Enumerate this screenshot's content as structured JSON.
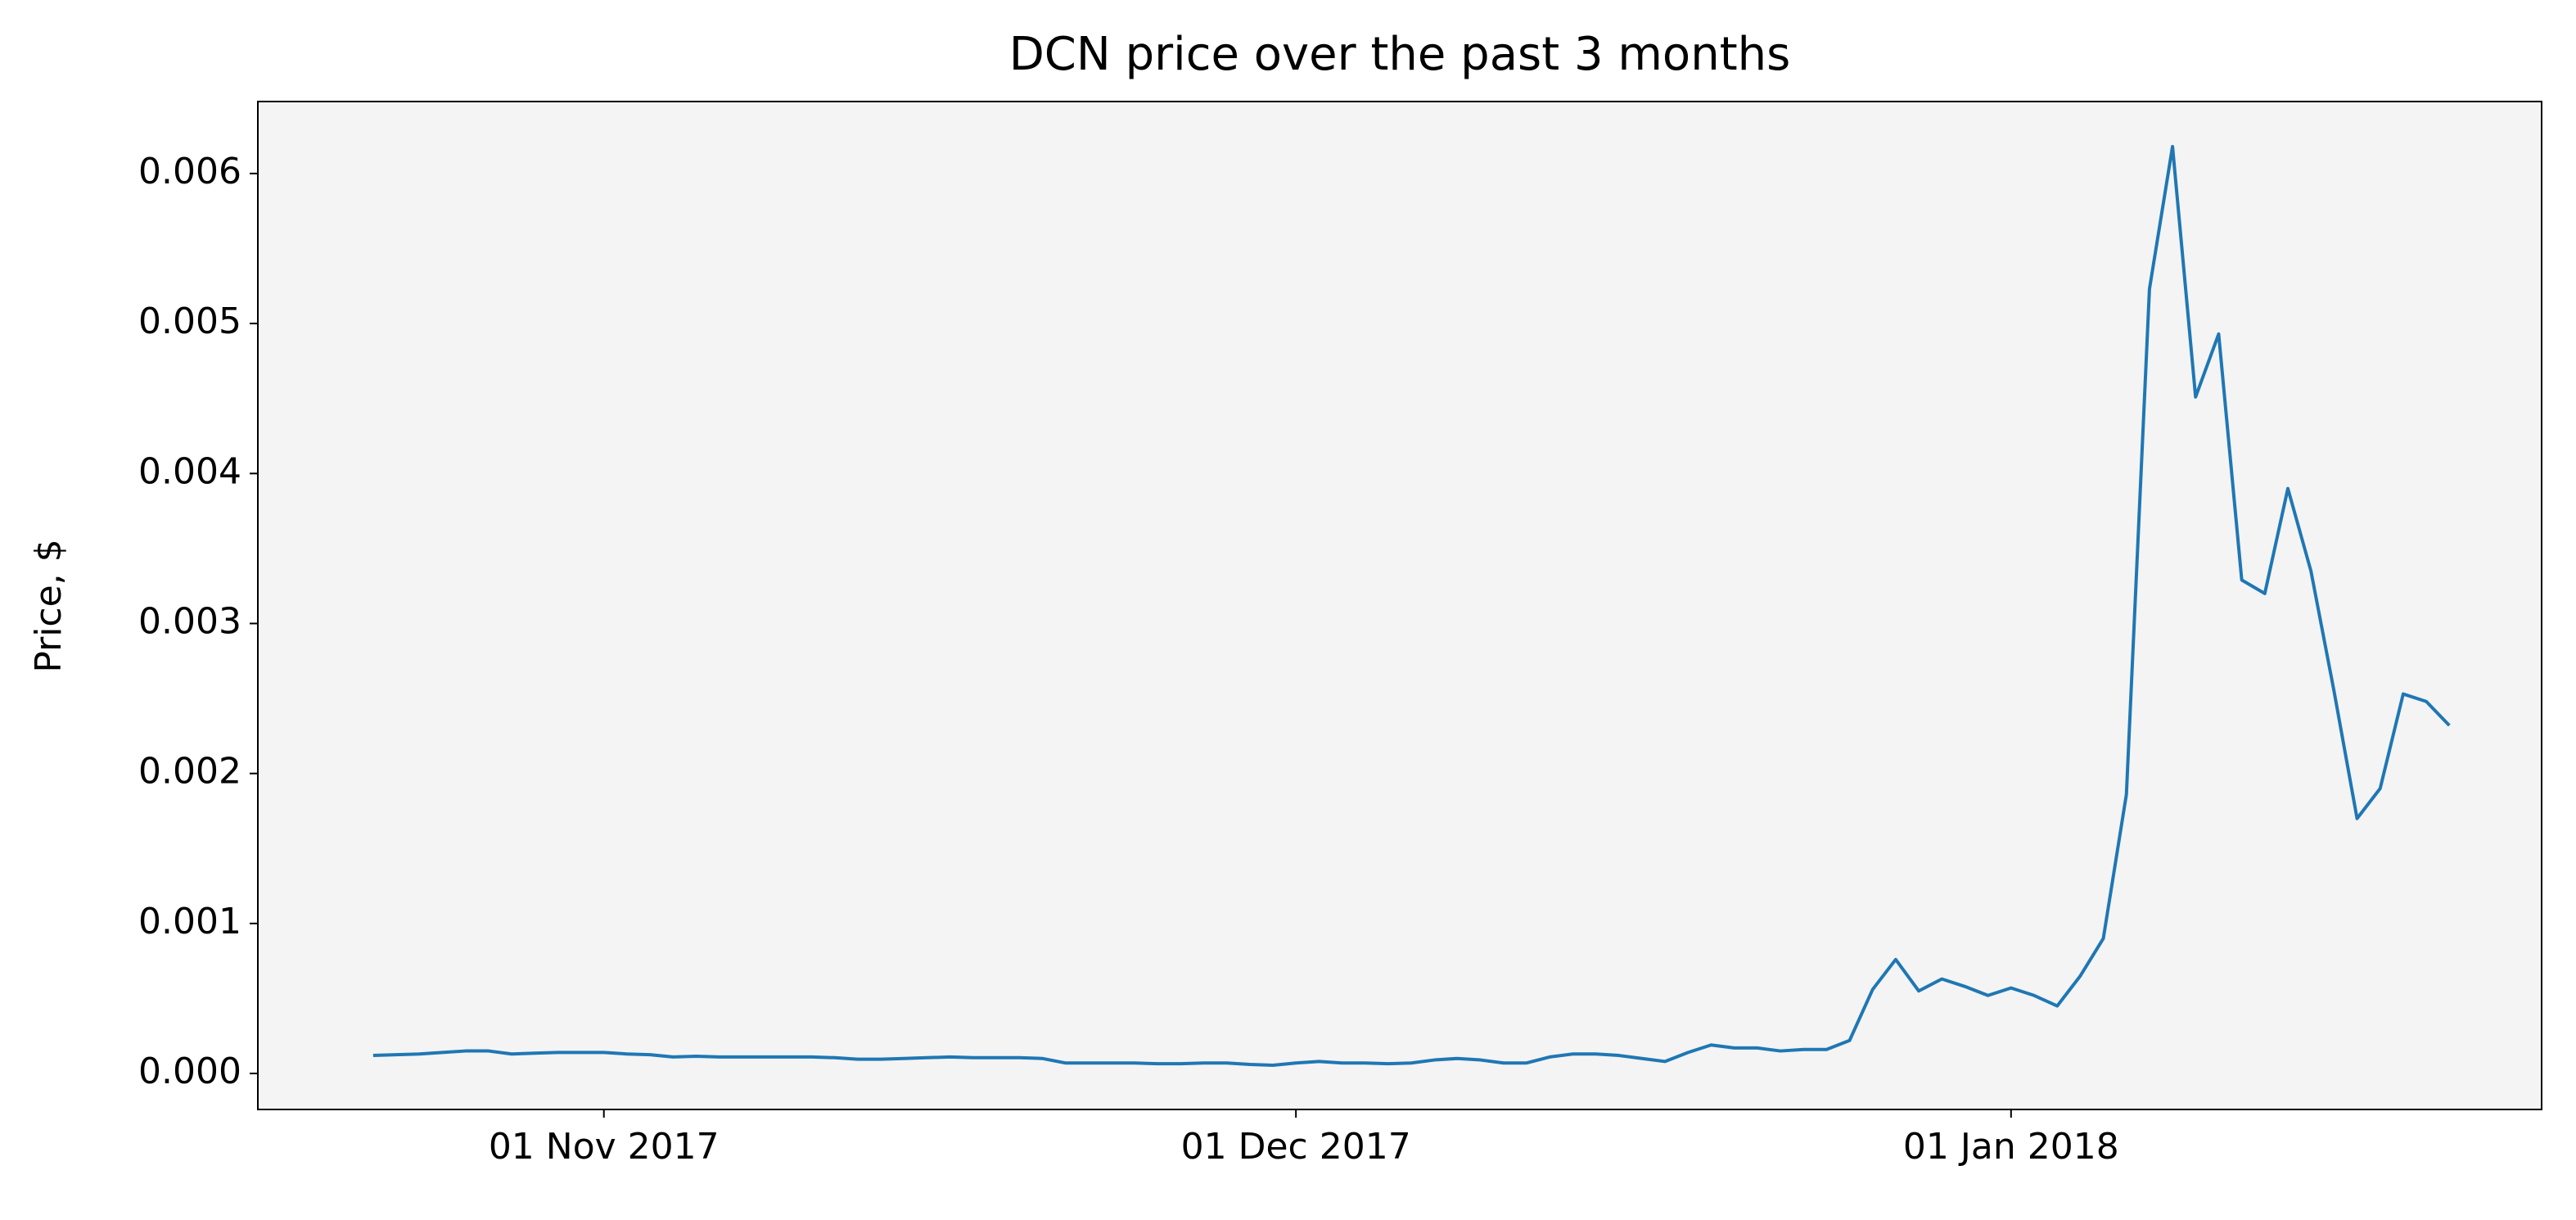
{
  "chart_data": {
    "type": "line",
    "title": "DCN price over the past 3 months",
    "y_label": "Price, $",
    "x": [
      "2017-10-22",
      "2017-10-23",
      "2017-10-24",
      "2017-10-25",
      "2017-10-26",
      "2017-10-27",
      "2017-10-28",
      "2017-10-29",
      "2017-10-30",
      "2017-10-31",
      "2017-11-01",
      "2017-11-02",
      "2017-11-03",
      "2017-11-04",
      "2017-11-05",
      "2017-11-06",
      "2017-11-07",
      "2017-11-08",
      "2017-11-09",
      "2017-11-10",
      "2017-11-11",
      "2017-11-12",
      "2017-11-13",
      "2017-11-14",
      "2017-11-15",
      "2017-11-16",
      "2017-11-17",
      "2017-11-18",
      "2017-11-19",
      "2017-11-20",
      "2017-11-21",
      "2017-11-22",
      "2017-11-23",
      "2017-11-24",
      "2017-11-25",
      "2017-11-26",
      "2017-11-27",
      "2017-11-28",
      "2017-11-29",
      "2017-11-30",
      "2017-12-01",
      "2017-12-02",
      "2017-12-03",
      "2017-12-04",
      "2017-12-05",
      "2017-12-06",
      "2017-12-07",
      "2017-12-08",
      "2017-12-09",
      "2017-12-10",
      "2017-12-11",
      "2017-12-12",
      "2017-12-13",
      "2017-12-14",
      "2017-12-15",
      "2017-12-16",
      "2017-12-17",
      "2017-12-18",
      "2017-12-19",
      "2017-12-20",
      "2017-12-21",
      "2017-12-22",
      "2017-12-23",
      "2017-12-24",
      "2017-12-25",
      "2017-12-26",
      "2017-12-27",
      "2017-12-28",
      "2017-12-29",
      "2017-12-30",
      "2017-12-31",
      "2018-01-01",
      "2018-01-02",
      "2018-01-03",
      "2018-01-04",
      "2018-01-05",
      "2018-01-06",
      "2018-01-07",
      "2018-01-08",
      "2018-01-09",
      "2018-01-10",
      "2018-01-11",
      "2018-01-12",
      "2018-01-13",
      "2018-01-14",
      "2018-01-15",
      "2018-01-16",
      "2018-01-17",
      "2018-01-18",
      "2018-01-19",
      "2018-01-20"
    ],
    "series": [
      {
        "name": "DCN",
        "color": "#1f77b4",
        "values": [
          0.00012,
          0.000125,
          0.00013,
          0.00014,
          0.00015,
          0.00015,
          0.00013,
          0.000135,
          0.00014,
          0.00014,
          0.00014,
          0.00013,
          0.000125,
          0.00011,
          0.000115,
          0.00011,
          0.00011,
          0.00011,
          0.00011,
          0.00011,
          0.000105,
          9.5e-05,
          9.5e-05,
          0.0001,
          0.000105,
          0.00011,
          0.000105,
          0.000105,
          0.000105,
          0.0001,
          7e-05,
          7e-05,
          7e-05,
          7e-05,
          6.5e-05,
          6.5e-05,
          7e-05,
          7e-05,
          6e-05,
          5.5e-05,
          7e-05,
          8e-05,
          7e-05,
          7e-05,
          6.5e-05,
          7e-05,
          9e-05,
          0.0001,
          9e-05,
          7e-05,
          7e-05,
          0.00011,
          0.00013,
          0.00013,
          0.00012,
          0.0001,
          8e-05,
          0.00014,
          0.00019,
          0.00017,
          0.00017,
          0.00015,
          0.00016,
          0.00016,
          0.00022,
          0.00056,
          0.00076,
          0.00055,
          0.00063,
          0.00058,
          0.00052,
          0.00057,
          0.00052,
          0.00045,
          0.00065,
          0.0009,
          0.00186,
          0.00523,
          0.00618,
          0.00451,
          0.00493,
          0.00329,
          0.0032,
          0.0039,
          0.00335,
          0.00255,
          0.0017,
          0.0019,
          0.00253,
          0.00248,
          0.00232
        ]
      }
    ],
    "xlim": [
      "2017-10-17",
      "2018-01-24"
    ],
    "xticks": [
      {
        "value": "2017-11-01",
        "label": "01 Nov 2017"
      },
      {
        "value": "2017-12-01",
        "label": "01 Dec 2017"
      },
      {
        "value": "2018-01-01",
        "label": "01 Jan 2018"
      }
    ],
    "ylim": [
      -0.00024,
      0.00648
    ],
    "yticks": [
      {
        "value": 0,
        "label": "0.000"
      },
      0.001,
      0.002,
      0.003,
      0.004,
      0.005,
      0.006
    ],
    "background": "#f4f4f4",
    "grid": false
  }
}
